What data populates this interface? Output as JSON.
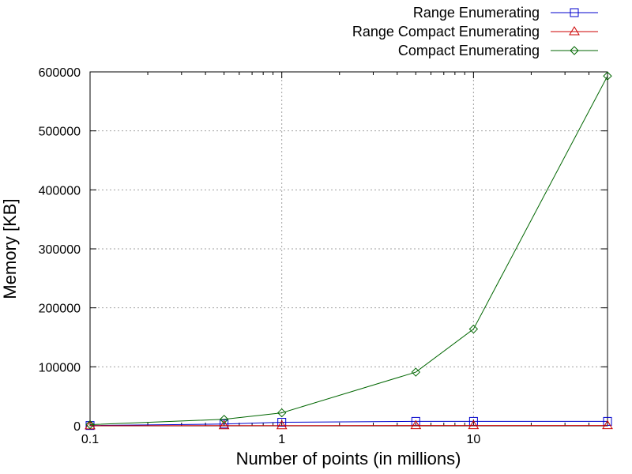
{
  "chart_data": {
    "type": "line",
    "title": "",
    "xlabel": "Number of points (in millions)",
    "ylabel": "Memory [KB]",
    "xscale": "log",
    "xlim": [
      0.1,
      50
    ],
    "ylim": [
      0,
      600000
    ],
    "x_ticks": [
      {
        "value": 0.1,
        "label": "0.1"
      },
      {
        "value": 1,
        "label": "1"
      },
      {
        "value": 10,
        "label": "10"
      }
    ],
    "x_minor_ticks": [
      0.2,
      0.3,
      0.4,
      0.5,
      0.6,
      0.7,
      0.8,
      0.9,
      2,
      3,
      4,
      5,
      6,
      7,
      8,
      9,
      20,
      30,
      40,
      50
    ],
    "y_ticks": [
      {
        "value": 0,
        "label": "0"
      },
      {
        "value": 100000,
        "label": "100000"
      },
      {
        "value": 200000,
        "label": "200000"
      },
      {
        "value": 300000,
        "label": "300000"
      },
      {
        "value": 400000,
        "label": "400000"
      },
      {
        "value": 500000,
        "label": "500000"
      },
      {
        "value": 600000,
        "label": "600000"
      }
    ],
    "grid": true,
    "legend_position": "top-right-outside",
    "x": [
      0.1,
      0.5,
      1,
      5,
      10,
      50
    ],
    "series": [
      {
        "name": "Range Enumerating",
        "color": "#0000cc",
        "marker": "square",
        "values": [
          500,
          3000,
          6000,
          7500,
          7500,
          7500
        ]
      },
      {
        "name": "Range Compact Enumerating",
        "color": "#cc0000",
        "marker": "triangle",
        "values": [
          200,
          300,
          400,
          500,
          500,
          500
        ]
      },
      {
        "name": "Compact Enumerating",
        "color": "#006600",
        "marker": "diamond",
        "values": [
          2000,
          11000,
          22000,
          91000,
          164000,
          593000
        ]
      }
    ]
  }
}
